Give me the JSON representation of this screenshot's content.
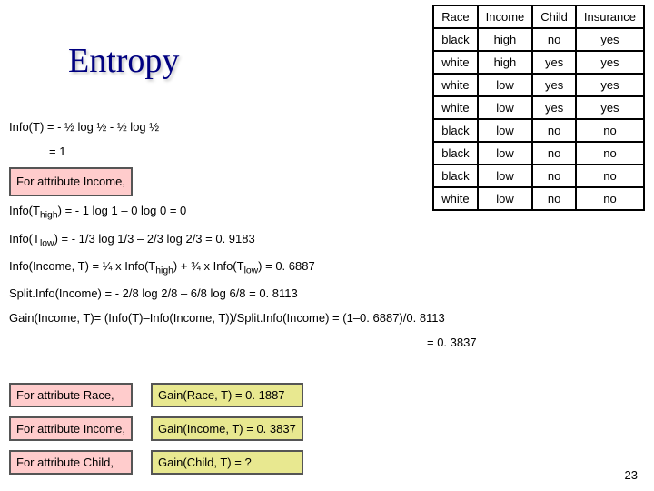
{
  "title": "Entropy",
  "table": {
    "headers": [
      "Race",
      "Income",
      "Child",
      "Insurance"
    ],
    "rows": [
      [
        "black",
        "high",
        "no",
        "yes"
      ],
      [
        "white",
        "high",
        "yes",
        "yes"
      ],
      [
        "white",
        "low",
        "yes",
        "yes"
      ],
      [
        "white",
        "low",
        "yes",
        "yes"
      ],
      [
        "black",
        "low",
        "no",
        "no"
      ],
      [
        "black",
        "low",
        "no",
        "no"
      ],
      [
        "black",
        "low",
        "no",
        "no"
      ],
      [
        "white",
        "low",
        "no",
        "no"
      ]
    ]
  },
  "calc": {
    "infoT_line1": "Info(T) = - ½ log ½ - ½ log ½",
    "infoT_line2": "= 1",
    "forIncome": "For attribute Income,",
    "infoThigh_label": "Info(T",
    "infoThigh_sub": "high",
    "infoThigh_rest": ") = - 1 log 1 – 0 log 0  =  0",
    "infoTlow_label": "Info(T",
    "infoTlow_sub": "low",
    "infoTlow_rest": ") = - 1/3 log 1/3 – 2/3 log 2/3   =  0. 9183",
    "infoIncome_line_a": "Info(Income, T) = ¼  x Info(T",
    "infoIncome_line_b": ") + ¾ x Info(T",
    "infoIncome_line_c": ")   =  0. 6887",
    "splitInfo": "Split.Info(Income) = - 2/8 log 2/8 – 6/8 log 6/8  =  0. 8113",
    "gainIncome_line1": "Gain(Income, T)= (Info(T)–Info(Income, T))/Split.Info(Income) = (1–0. 6887)/0. 8113",
    "gainIncome_line2": "= 0. 3837"
  },
  "bottom": {
    "race_label": "For attribute Race,",
    "race_gain": "Gain(Race, T) = 0. 1887",
    "income_label": "For attribute Income,",
    "income_gain": "Gain(Income, T) = 0. 3837",
    "child_label": "For attribute Child,",
    "child_gain": "Gain(Child, T) = ?"
  },
  "pagenum": "23"
}
